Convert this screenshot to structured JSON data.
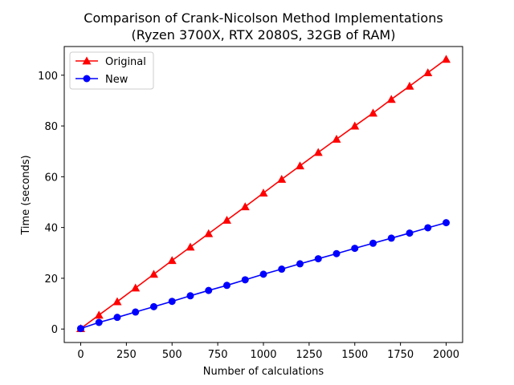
{
  "chart_data": {
    "type": "line",
    "title": "Comparison of Crank-Nicolson Method Implementations",
    "subtitle": "(Ryzen 3700X, RTX 2080S, 32GB of RAM)",
    "xlabel": "Number of calculations",
    "ylabel": "Time (seconds)",
    "xlim": [
      -90,
      2090
    ],
    "ylim": [
      -5.3,
      111.3
    ],
    "xticks": [
      0,
      250,
      500,
      750,
      1000,
      1250,
      1500,
      1750,
      2000
    ],
    "yticks": [
      0,
      20,
      40,
      60,
      80,
      100
    ],
    "grid": false,
    "legend_position": "top-left",
    "x": [
      0,
      100,
      200,
      300,
      400,
      500,
      600,
      700,
      800,
      900,
      1000,
      1100,
      1200,
      1300,
      1400,
      1500,
      1600,
      1700,
      1800,
      1900,
      2000
    ],
    "series": [
      {
        "name": "Original",
        "color": "#ff0000",
        "marker": "triangle",
        "values": [
          0.2,
          5.5,
          10.8,
          16.2,
          21.6,
          27.0,
          32.3,
          37.6,
          42.9,
          48.2,
          53.6,
          59.0,
          64.3,
          69.6,
          74.8,
          80.0,
          85.1,
          90.5,
          95.7,
          101.0,
          106.3
        ]
      },
      {
        "name": "New",
        "color": "#0000ff",
        "marker": "circle",
        "values": [
          0.2,
          2.6,
          4.6,
          6.7,
          8.8,
          10.9,
          13.1,
          15.2,
          17.2,
          19.4,
          21.6,
          23.6,
          25.7,
          27.7,
          29.7,
          31.8,
          33.8,
          35.8,
          37.8,
          39.9,
          41.9
        ]
      }
    ]
  }
}
